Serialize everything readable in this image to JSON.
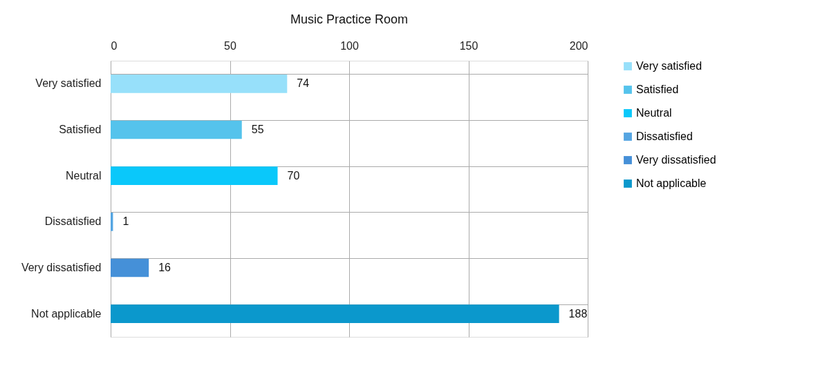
{
  "chart_data": {
    "type": "bar",
    "title": "Music Practice Room",
    "orientation": "horizontal",
    "stacked": true,
    "categories": [
      "Very satisfied",
      "Satisfied",
      "Neutral",
      "Dissatisfied",
      "Very dissatisfied",
      "Not applicable"
    ],
    "series": [
      {
        "name": "Very satisfied",
        "color": "#97e0fa",
        "values": [
          74,
          null,
          null,
          null,
          null,
          null
        ]
      },
      {
        "name": "Satisfied",
        "color": "#55c3ec",
        "values": [
          null,
          55,
          null,
          null,
          null,
          null
        ]
      },
      {
        "name": "Neutral",
        "color": "#0ac8fa",
        "values": [
          null,
          null,
          70,
          null,
          null,
          null
        ]
      },
      {
        "name": "Dissatisfied",
        "color": "#55a5e2",
        "values": [
          null,
          null,
          null,
          1,
          null,
          null
        ]
      },
      {
        "name": "Very dissatisfied",
        "color": "#4590d8",
        "values": [
          null,
          null,
          null,
          null,
          16,
          null
        ]
      },
      {
        "name": "Not applicable",
        "color": "#0b98cc",
        "values": [
          null,
          null,
          null,
          null,
          null,
          188
        ]
      }
    ],
    "xlim": [
      0,
      200
    ],
    "xticks": [
      0,
      50,
      100,
      150,
      200
    ],
    "grid": true,
    "legend": "right",
    "data_labels": true
  }
}
